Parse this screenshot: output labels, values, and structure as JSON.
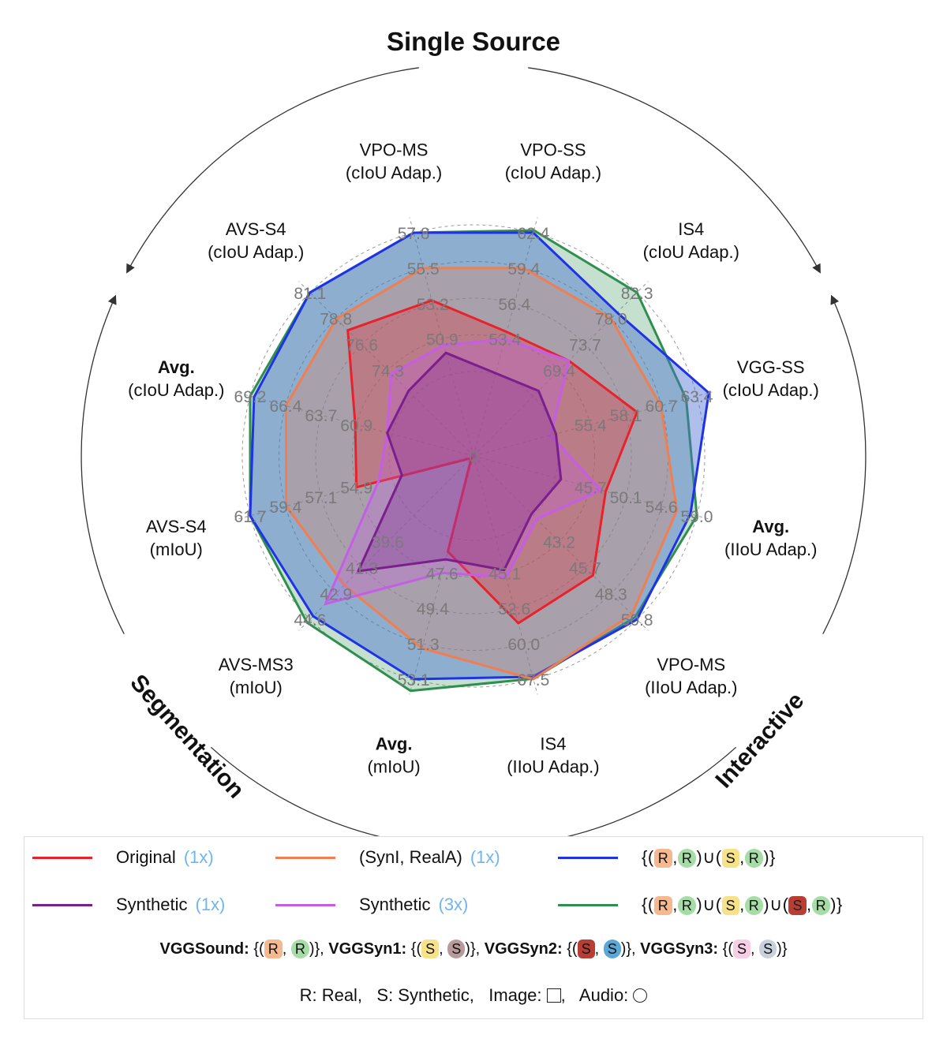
{
  "chart_data": {
    "type": "radar",
    "group_labels": [
      {
        "text": "Single Source",
        "angle_deg": 0
      },
      {
        "text": "Interactive",
        "angle_deg": 127
      },
      {
        "text": "Segmentation",
        "angle_deg": 233
      }
    ],
    "axes": [
      {
        "name": "VPO-SS",
        "metric": "(cIoU Adap.)",
        "bold": false,
        "ticks": [
          "62.4",
          "59.4",
          "56.4",
          "53.4"
        ]
      },
      {
        "name": "IS4",
        "metric": "(cIoU Adap.)",
        "bold": false,
        "ticks": [
          "82.3",
          "78.0",
          "73.7",
          "69.4"
        ]
      },
      {
        "name": "VGG-SS",
        "metric": "(cIoU Adap.)",
        "bold": false,
        "ticks": [
          "63.4",
          "60.7",
          "58.1",
          "55.4"
        ]
      },
      {
        "name": "Avg.",
        "metric": "(IIoU Adap.)",
        "bold": true,
        "ticks": [
          "59.0",
          "54.6",
          "50.1",
          "45.7"
        ]
      },
      {
        "name": "VPO-MS",
        "metric": "(IIoU Adap.)",
        "bold": false,
        "ticks": [
          "50.8",
          "48.3",
          "45.7",
          "43.2"
        ]
      },
      {
        "name": "IS4",
        "metric": "(IIoU Adap.)",
        "bold": false,
        "ticks": [
          "67.5",
          "60.0",
          "52.6",
          "45.1"
        ]
      },
      {
        "name": "Avg.",
        "metric": "(mIoU)",
        "bold": true,
        "ticks": [
          "53.1",
          "51.3",
          "49.4",
          "47.6"
        ]
      },
      {
        "name": "AVS-MS3",
        "metric": "(mIoU)",
        "bold": false,
        "ticks": [
          "44.6",
          "42.9",
          "41.3",
          "39.6"
        ]
      },
      {
        "name": "AVS-S4",
        "metric": "(mIoU)",
        "bold": false,
        "ticks": [
          "61.7",
          "59.4",
          "57.1",
          "54.9"
        ]
      },
      {
        "name": "Avg.",
        "metric": "(cIoU Adap.)",
        "bold": true,
        "ticks": [
          "69.2",
          "66.4",
          "63.7",
          "60.9"
        ]
      },
      {
        "name": "AVS-S4",
        "metric": "(cIoU Adap.)",
        "bold": false,
        "ticks": [
          "81.1",
          "78.8",
          "76.6",
          "74.3"
        ]
      },
      {
        "name": "VPO-MS",
        "metric": "(cIoU Adap.)",
        "bold": false,
        "ticks": [
          "57.8",
          "55.5",
          "53.2",
          "50.9"
        ]
      }
    ],
    "center_label": "0",
    "series": [
      {
        "name": "Original",
        "multiplier": "(1x)",
        "color": "#e8222a",
        "fill": "#e8222a",
        "values": [
          54.0,
          71.0,
          58.9,
          47.6,
          46.5,
          55.7,
          46.5,
          34.0,
          54.9,
          61.0,
          77.8,
          53.4
        ]
      },
      {
        "name": "Synthetic",
        "multiplier": "(1x)",
        "color": "#7b1f8c",
        "fill": "#7b1f8c",
        "values": [
          50.5,
          66.0,
          52.8,
          42.0,
          40.5,
          44.5,
          46.9,
          41.5,
          52.0,
          58.5,
          72.5,
          50.0
        ]
      },
      {
        "name": "Synthetic",
        "multiplier": "(3x)",
        "color": "#c55de6",
        "fill": "#c55de6",
        "values": [
          53.4,
          71.0,
          52.4,
          47.0,
          41.0,
          46.0,
          47.6,
          43.6,
          53.5,
          58.5,
          74.0,
          50.5
        ]
      },
      {
        "name": "(SynI, RealA)",
        "multiplier": "(1x)",
        "color": "#f07e50",
        "fill": "#f07e50",
        "values": [
          59.4,
          78.0,
          60.7,
          56.5,
          50.3,
          67.5,
          51.5,
          42.4,
          59.4,
          66.4,
          78.8,
          55.5
        ]
      },
      {
        "name": "{(R,R)∪(S,R)}",
        "multiplier": "",
        "color": "#1f32e8",
        "fill": "#4a72d0",
        "values": [
          62.4,
          79.0,
          64.3,
          58.2,
          50.8,
          67.0,
          53.1,
          44.4,
          61.7,
          68.9,
          81.1,
          57.8
        ]
      },
      {
        "name": "{(R,R)∪(S,R)∪(S,R)}",
        "multiplier": "",
        "color": "#2f8f4e",
        "fill": "#2f8f4e",
        "values": [
          62.6,
          82.3,
          62.6,
          59.0,
          50.6,
          67.4,
          53.7,
          44.8,
          61.7,
          69.2,
          81.1,
          57.8
        ]
      }
    ]
  },
  "legend": {
    "row1": [
      {
        "label": "Original",
        "mult": "(1x)",
        "color": "#e8222a"
      },
      {
        "label": "(SynI, RealA)",
        "mult": "(1x)",
        "color": "#f07e50"
      },
      {
        "label": "",
        "mult": "",
        "color": "#1f32e8"
      }
    ],
    "row2": [
      {
        "label": "Synthetic",
        "mult": "(1x)",
        "color": "#7b1f8c"
      },
      {
        "label": "Synthetic",
        "mult": "(3x)",
        "color": "#c55de6"
      },
      {
        "label": "",
        "mult": "",
        "color": "#2f8f4e"
      }
    ],
    "formula1": {
      "open": "{(",
      "r1": "R",
      "sep1": ",",
      "r2": "R",
      "mid": ")∪(",
      "s1": "S",
      "sep2": ",",
      "r3": "R",
      "close": ")}"
    },
    "formula2": {
      "open": "{(",
      "r1": "R",
      "sep1": ",",
      "r2": "R",
      "mid1": ")∪(",
      "s1": "S",
      "sep2": ",",
      "r3": "R",
      "mid2": ")∪(",
      "s2": "S",
      "sep3": ",",
      "r4": "R",
      "close": ")}"
    },
    "datasets": [
      {
        "name": "VGGSound:",
        "a": "R",
        "b": "R"
      },
      {
        "name": "VGGSyn1:",
        "a": "S",
        "b": "S"
      },
      {
        "name": "VGGSyn2:",
        "a": "S",
        "b": "S"
      },
      {
        "name": "VGGSyn3:",
        "a": "S",
        "b": "S"
      }
    ],
    "note_real": "R: Real,",
    "note_synth": "S: Synthetic,",
    "note_image": "Image:",
    "note_audio": "Audio:"
  },
  "colors": {
    "chip_real_image": "#f5b88f",
    "chip_real_audio": "#a6dca6",
    "chip_syn_image_yellow": "#f7e28a",
    "chip_syn_audio_brown": "#b89a9a",
    "chip_syn_image_red": "#b83e34",
    "chip_syn_audio_blue": "#5aa8d8",
    "chip_syn_image_pink": "#f6cfe6",
    "chip_syn_audio_grey": "#c9d0de",
    "multiplier_text": "#6fb6ee"
  }
}
